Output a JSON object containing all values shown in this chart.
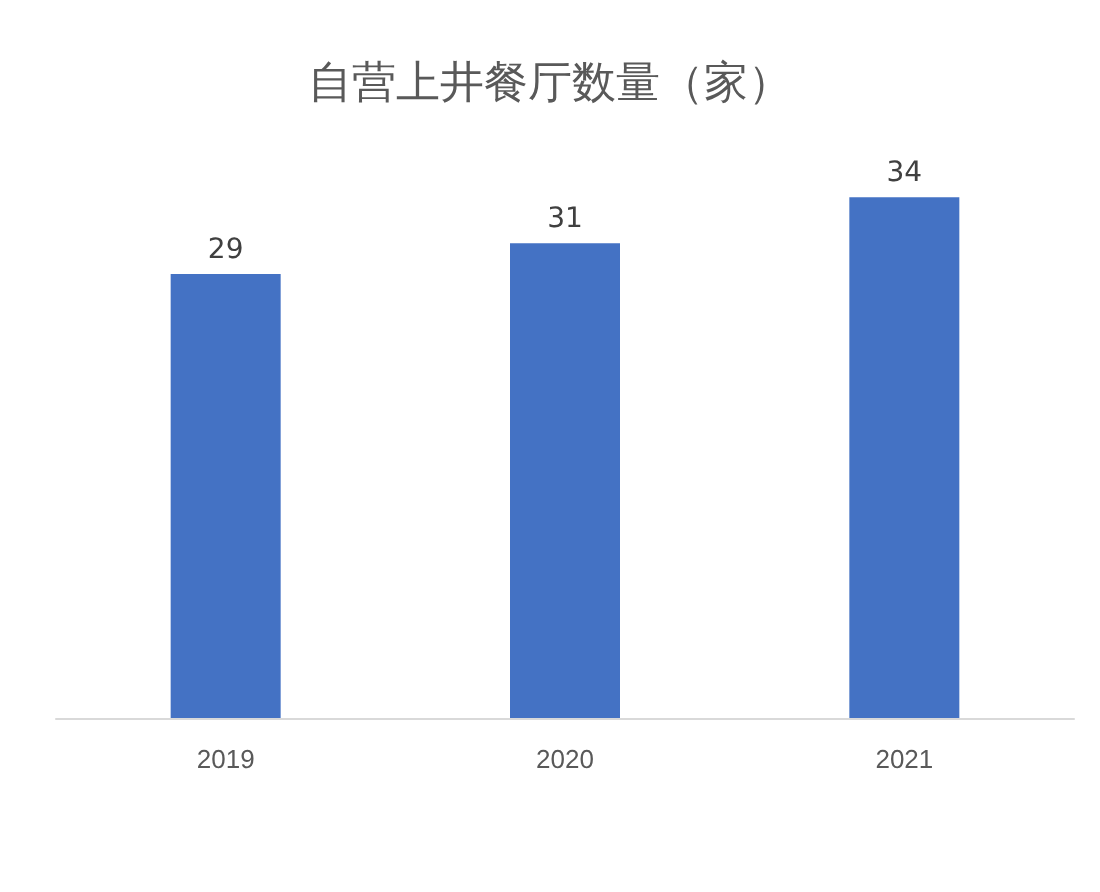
{
  "chart_data": {
    "type": "bar",
    "title": "自营上井餐厅数量（家）",
    "categories": [
      "2019",
      "2020",
      "2021"
    ],
    "values": [
      29,
      31,
      34
    ],
    "color": "#4472c4",
    "data_labels": true
  }
}
